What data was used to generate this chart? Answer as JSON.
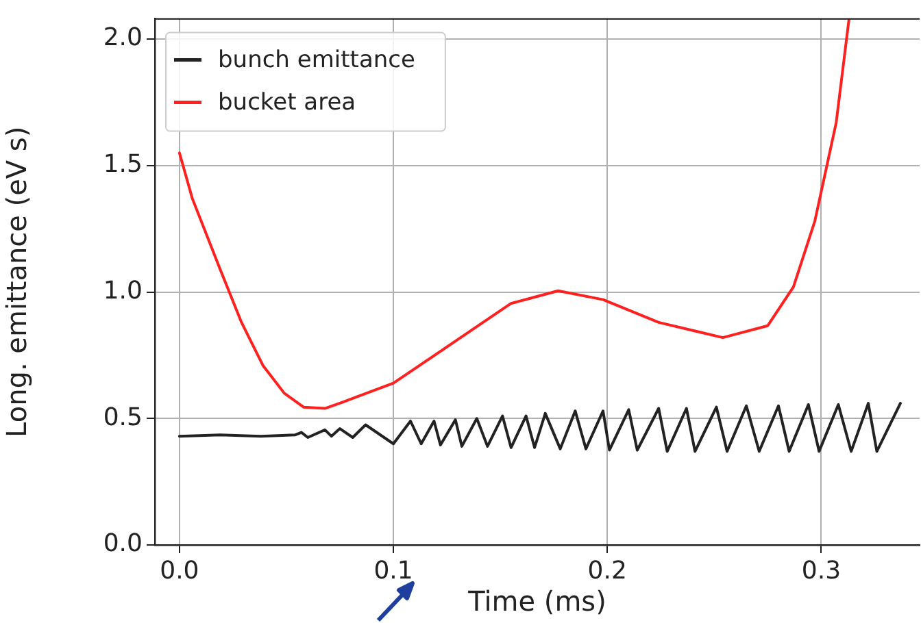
{
  "chart_data": {
    "type": "line",
    "xlabel": "Time (ms)",
    "ylabel": "Long. emittance (eV s)",
    "xlim": [
      -0.0115,
      0.346
    ],
    "ylim": [
      0,
      2.08
    ],
    "xticks": [
      {
        "value": 0,
        "label": "0.0"
      },
      {
        "value": 0.1,
        "label": "0.1"
      },
      {
        "value": 0.2,
        "label": "0.2"
      },
      {
        "value": 0.3,
        "label": "0.3"
      }
    ],
    "yticks": [
      {
        "value": 0,
        "label": "0.0"
      },
      {
        "value": 0.5,
        "label": "0.5"
      },
      {
        "value": 1,
        "label": "1.0"
      },
      {
        "value": 1.5,
        "label": "1.5"
      },
      {
        "value": 2,
        "label": "2.0"
      }
    ],
    "grid": true,
    "legend": "top left",
    "marker": "none",
    "line_style": "solid",
    "series": [
      {
        "name": "bunch emittance",
        "color": "#222222",
        "x": [
          0,
          0.019,
          0.038,
          0.054,
          0.057,
          0.06,
          0.068,
          0.071,
          0.075,
          0.081,
          0.087,
          0.1,
          0.108,
          0.113,
          0.119,
          0.122,
          0.129,
          0.132,
          0.139,
          0.144,
          0.151,
          0.155,
          0.162,
          0.166,
          0.171,
          0.178,
          0.185,
          0.19,
          0.198,
          0.201,
          0.21,
          0.214,
          0.224,
          0.228,
          0.237,
          0.241,
          0.251,
          0.256,
          0.265,
          0.271,
          0.28,
          0.285,
          0.294,
          0.299,
          0.308,
          0.314,
          0.322,
          0.326,
          0.337
        ],
        "values": [
          0.43,
          0.435,
          0.43,
          0.435,
          0.445,
          0.425,
          0.455,
          0.43,
          0.46,
          0.425,
          0.475,
          0.4,
          0.49,
          0.4,
          0.49,
          0.395,
          0.495,
          0.39,
          0.5,
          0.39,
          0.51,
          0.385,
          0.51,
          0.385,
          0.52,
          0.38,
          0.53,
          0.38,
          0.53,
          0.375,
          0.535,
          0.375,
          0.54,
          0.37,
          0.54,
          0.37,
          0.545,
          0.37,
          0.55,
          0.37,
          0.55,
          0.37,
          0.555,
          0.37,
          0.555,
          0.37,
          0.56,
          0.37,
          0.56
        ]
      },
      {
        "name": "bucket area",
        "color": "#ff2020",
        "x": [
          0,
          0.006,
          0.019,
          0.029,
          0.039,
          0.049,
          0.058,
          0.068,
          0.077,
          0.1,
          0.128,
          0.155,
          0.177,
          0.198,
          0.224,
          0.254,
          0.275,
          0.287,
          0.297,
          0.307,
          0.313
        ],
        "values": [
          1.55,
          1.37,
          1.09,
          0.88,
          0.71,
          0.6,
          0.545,
          0.54,
          0.567,
          0.64,
          0.8,
          0.955,
          1.005,
          0.97,
          0.88,
          0.82,
          0.867,
          1.02,
          1.28,
          1.67,
          2.08
        ]
      }
    ]
  }
}
